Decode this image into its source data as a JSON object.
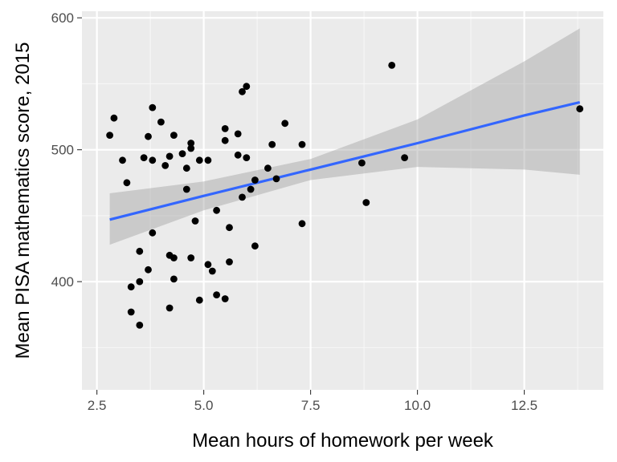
{
  "chart_data": {
    "type": "scatter",
    "title": "",
    "xlabel": "Mean hours of homework per week",
    "ylabel": "Mean PISA mathematics score, 2015",
    "xlim": [
      2.15,
      14.35
    ],
    "ylim": [
      318,
      605
    ],
    "x_ticks": [
      2.5,
      5.0,
      7.5,
      10.0,
      12.5
    ],
    "x_tick_labels": [
      "2.5",
      "5.0",
      "7.5",
      "10.0",
      "12.5"
    ],
    "y_ticks": [
      400,
      500,
      600
    ],
    "y_tick_labels": [
      "400",
      "500",
      "600"
    ],
    "grid": true,
    "legend": "none",
    "colors": {
      "panel": "#ebebeb",
      "grid_major": "#ffffff",
      "point": "#000000",
      "fit_line": "#3366ff",
      "ribbon": "#c4c4c4"
    },
    "points": [
      {
        "x": 2.8,
        "y": 511
      },
      {
        "x": 2.9,
        "y": 524
      },
      {
        "x": 3.1,
        "y": 492
      },
      {
        "x": 3.2,
        "y": 475
      },
      {
        "x": 3.3,
        "y": 396
      },
      {
        "x": 3.3,
        "y": 377
      },
      {
        "x": 3.5,
        "y": 367
      },
      {
        "x": 3.5,
        "y": 400
      },
      {
        "x": 3.5,
        "y": 423
      },
      {
        "x": 3.6,
        "y": 494
      },
      {
        "x": 3.7,
        "y": 510
      },
      {
        "x": 3.7,
        "y": 409
      },
      {
        "x": 3.8,
        "y": 532
      },
      {
        "x": 3.8,
        "y": 492
      },
      {
        "x": 3.8,
        "y": 437
      },
      {
        "x": 4.0,
        "y": 521
      },
      {
        "x": 4.1,
        "y": 488
      },
      {
        "x": 4.2,
        "y": 495
      },
      {
        "x": 4.2,
        "y": 420
      },
      {
        "x": 4.2,
        "y": 380
      },
      {
        "x": 4.3,
        "y": 511
      },
      {
        "x": 4.3,
        "y": 418
      },
      {
        "x": 4.3,
        "y": 402
      },
      {
        "x": 4.5,
        "y": 497
      },
      {
        "x": 4.6,
        "y": 486
      },
      {
        "x": 4.6,
        "y": 470
      },
      {
        "x": 4.7,
        "y": 505
      },
      {
        "x": 4.7,
        "y": 501
      },
      {
        "x": 4.7,
        "y": 418
      },
      {
        "x": 4.8,
        "y": 446
      },
      {
        "x": 4.9,
        "y": 492
      },
      {
        "x": 4.9,
        "y": 386
      },
      {
        "x": 5.1,
        "y": 492
      },
      {
        "x": 5.1,
        "y": 413
      },
      {
        "x": 5.2,
        "y": 408
      },
      {
        "x": 5.3,
        "y": 454
      },
      {
        "x": 5.3,
        "y": 390
      },
      {
        "x": 5.5,
        "y": 516
      },
      {
        "x": 5.5,
        "y": 507
      },
      {
        "x": 5.5,
        "y": 387
      },
      {
        "x": 5.6,
        "y": 441
      },
      {
        "x": 5.6,
        "y": 415
      },
      {
        "x": 5.8,
        "y": 512
      },
      {
        "x": 5.8,
        "y": 496
      },
      {
        "x": 5.9,
        "y": 544
      },
      {
        "x": 5.9,
        "y": 464
      },
      {
        "x": 6.0,
        "y": 548
      },
      {
        "x": 6.0,
        "y": 494
      },
      {
        "x": 6.1,
        "y": 470
      },
      {
        "x": 6.2,
        "y": 477
      },
      {
        "x": 6.2,
        "y": 427
      },
      {
        "x": 6.5,
        "y": 486
      },
      {
        "x": 6.6,
        "y": 504
      },
      {
        "x": 6.7,
        "y": 478
      },
      {
        "x": 6.9,
        "y": 520
      },
      {
        "x": 7.3,
        "y": 504
      },
      {
        "x": 7.3,
        "y": 444
      },
      {
        "x": 8.7,
        "y": 490
      },
      {
        "x": 8.8,
        "y": 460
      },
      {
        "x": 9.4,
        "y": 564
      },
      {
        "x": 9.7,
        "y": 494
      },
      {
        "x": 13.8,
        "y": 531
      }
    ],
    "fit": {
      "method": "linear",
      "x": [
        2.8,
        5.0,
        7.5,
        10.0,
        12.5,
        13.8
      ],
      "y": [
        447,
        465,
        485,
        505,
        526,
        536
      ],
      "lower": [
        428,
        454,
        477,
        487,
        485,
        481
      ],
      "upper": [
        467,
        476,
        493,
        523,
        567,
        592
      ]
    }
  }
}
